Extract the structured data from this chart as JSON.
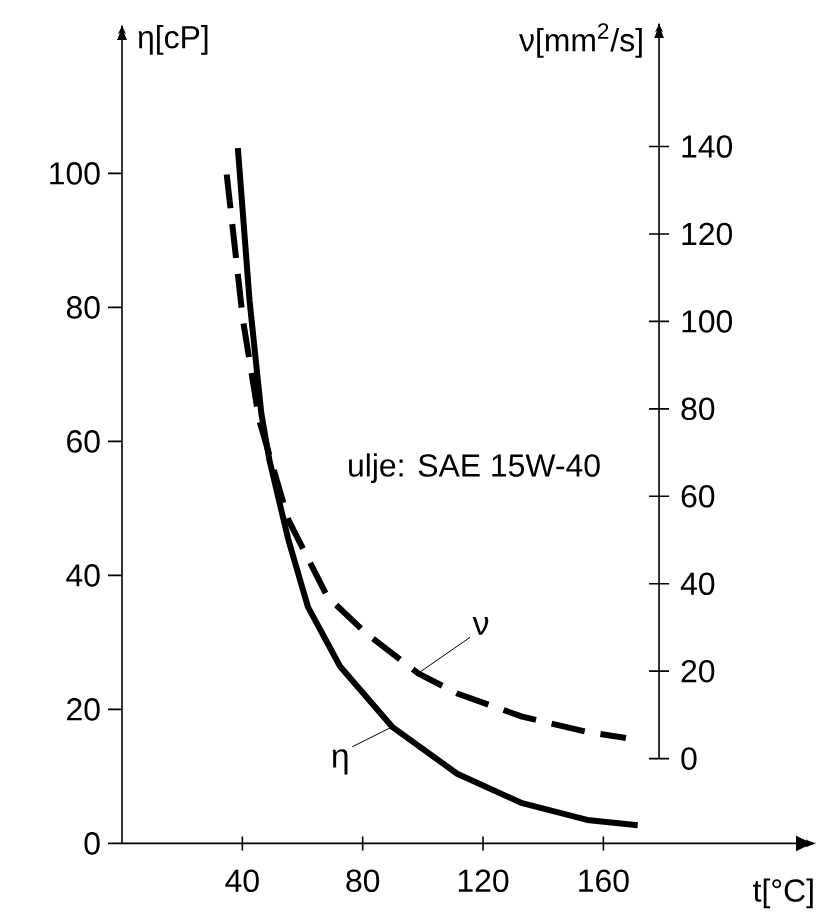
{
  "chart_data": {
    "type": "line",
    "xlabel": "t[°C]",
    "ylabel": "η[cP]",
    "y2label": "ν[mm$^{2}$/s]",
    "xlim": [
      0,
      230
    ],
    "xticks": [
      40,
      80,
      120,
      160
    ],
    "ylim": [
      0,
      122
    ],
    "yticks": [
      0,
      20,
      40,
      60,
      80,
      100
    ],
    "y2lim": [
      0,
      168
    ],
    "y2ticks": [
      0,
      20,
      40,
      60,
      80,
      100,
      120,
      140
    ],
    "grid": false,
    "marker": "none",
    "annotations": [
      "ulje: SAE 15W-40"
    ],
    "series": [
      {
        "name": "η",
        "color": "#000000",
        "line_style": "solid",
        "axis": "y",
        "x": [
          38.5,
          42.4,
          46.3,
          49,
          55.3,
          61.8,
          72.5,
          89.8,
          111.4,
          133,
          154.6,
          171.4
        ],
        "values": [
          103.8,
          81,
          64.2,
          57.2,
          45.3,
          35.3,
          26.4,
          17.4,
          10.4,
          6.0,
          3.5,
          2.7
        ]
      },
      {
        "name": "ν",
        "color": "#000000",
        "line_style": "dashed",
        "axis": "y2",
        "x": [
          34.8,
          40.2,
          45.6,
          55.3,
          68.2,
          81.2,
          98.4,
          111.4,
          133,
          154.6,
          167.5
        ],
        "values": [
          133.6,
          100.3,
          77.4,
          54.6,
          37.1,
          28.6,
          19.5,
          14.9,
          9.6,
          6.1,
          4.7
        ]
      }
    ]
  }
}
